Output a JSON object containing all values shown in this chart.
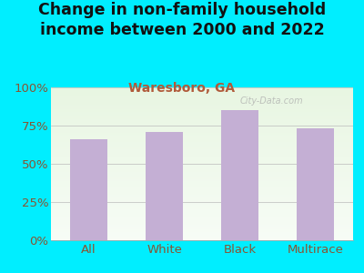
{
  "title": "Change in non-family household\nincome between 2000 and 2022",
  "subtitle": "Waresboro, GA",
  "categories": [
    "All",
    "White",
    "Black",
    "Multirace"
  ],
  "values": [
    66,
    71,
    85,
    73
  ],
  "bar_color": "#c4afd4",
  "background_outer": "#00eeff",
  "title_color": "#111111",
  "subtitle_color": "#b05a3a",
  "tick_color": "#885533",
  "axis_label_color": "#885533",
  "ylim": [
    0,
    100
  ],
  "yticks": [
    0,
    25,
    50,
    75,
    100
  ],
  "ytick_labels": [
    "0%",
    "25%",
    "50%",
    "75%",
    "100%"
  ],
  "title_fontsize": 12.5,
  "subtitle_fontsize": 10,
  "tick_fontsize": 9.5,
  "watermark": "City-Data.com"
}
